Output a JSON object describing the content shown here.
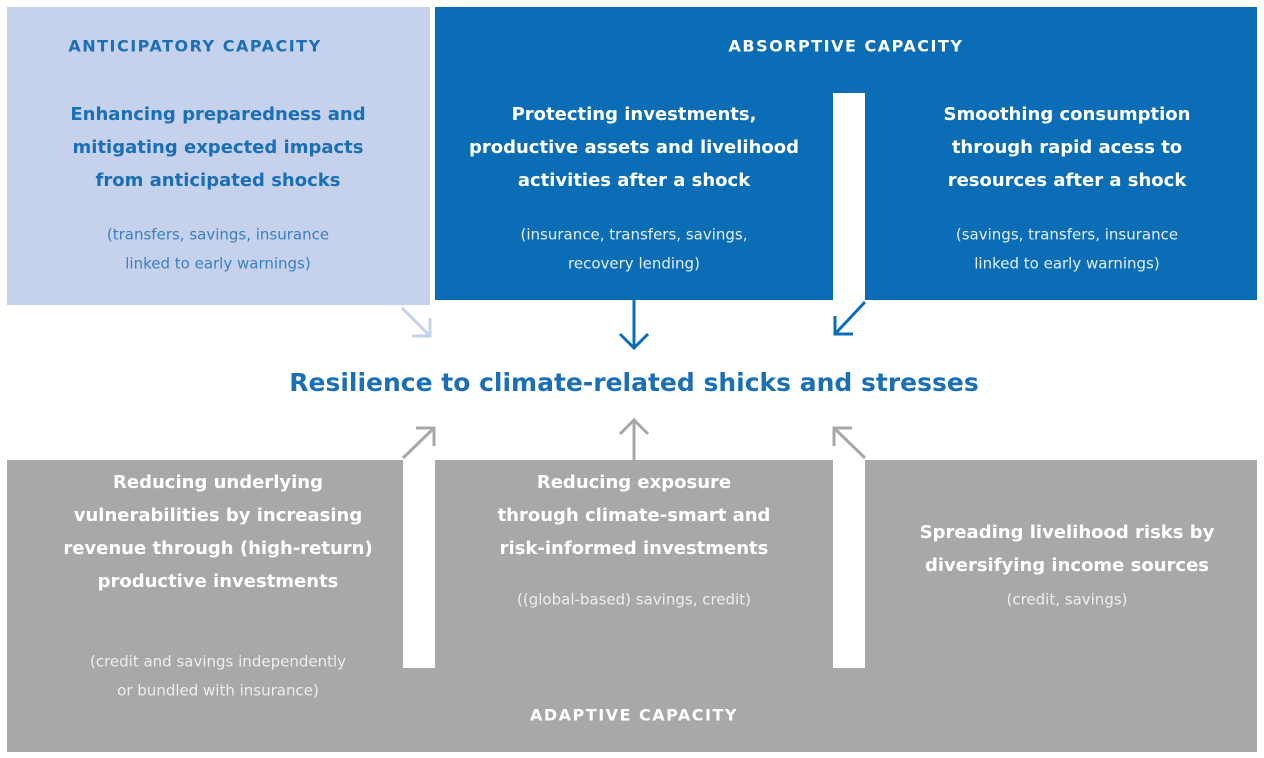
{
  "anticipatory": {
    "title": "ANTICIPATORY CAPACITY",
    "heading": [
      "Enhancing preparedness and",
      "mitigating expected impacts",
      "from anticipated shocks"
    ],
    "note": [
      "(transfers, savings, insurance",
      "linked to early warnings)"
    ]
  },
  "absorptive": {
    "title": "ABSORPTIVE CAPACITY",
    "items": [
      {
        "heading": [
          "Protecting investments,",
          "productive assets and livelihood",
          "activities after a shock"
        ],
        "note": [
          "(insurance, transfers, savings,",
          "recovery lending)"
        ]
      },
      {
        "heading": [
          "Smoothing consumption",
          "through rapid acess to",
          "resources after a shock"
        ],
        "note": [
          "(savings, transfers, insurance",
          "linked to early warnings)"
        ]
      }
    ]
  },
  "center": {
    "title": "Resilience to climate-related shicks and stresses"
  },
  "adaptive": {
    "title": "ADAPTIVE CAPACITY",
    "items": [
      {
        "heading": [
          "Reducing underlying",
          "vulnerabilities by increasing",
          "revenue through (high-return)",
          "productive investments"
        ],
        "note": [
          "(credit and savings independently",
          "or bundled with insurance)"
        ]
      },
      {
        "heading": [
          "Reducing exposure",
          "through climate-smart and",
          "risk-informed investments"
        ],
        "note": [
          "((global-based) savings, credit)"
        ]
      },
      {
        "heading": [
          "Spreading livelihood risks by",
          "diversifying income sources"
        ],
        "note": [
          "(credit, savings)"
        ]
      }
    ]
  }
}
